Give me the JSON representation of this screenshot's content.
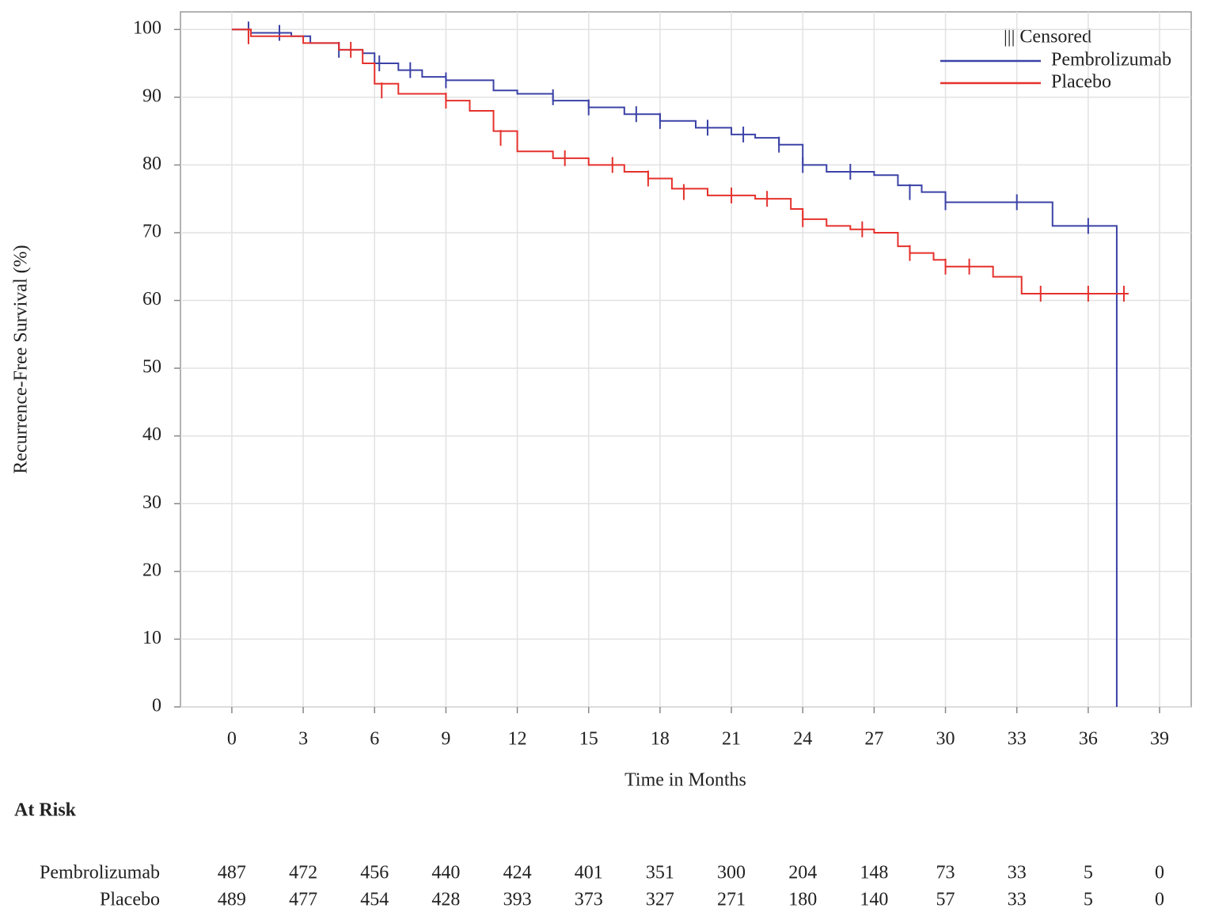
{
  "chart_data": {
    "type": "step",
    "x_label": "Time in Months",
    "y_label": "Recurrence-Free Survival (%)",
    "xlim": [
      -2.16,
      40.33
    ],
    "ylim": [
      0,
      102.6
    ],
    "xticks": [
      0,
      3,
      6,
      9,
      12,
      15,
      18,
      21,
      24,
      27,
      30,
      33,
      36,
      39
    ],
    "yticks": [
      0,
      10,
      20,
      30,
      40,
      50,
      60,
      70,
      80,
      90,
      100
    ],
    "grid": true,
    "legend_position": "upper right",
    "legend_censored": "||| Censored",
    "series": [
      {
        "name": "Pembrolizumab",
        "color": "#3b42a6",
        "x": [
          0,
          0.8,
          2.5,
          3.3,
          4.5,
          5.5,
          6,
          7,
          8,
          9,
          11,
          12,
          13.5,
          15,
          16.5,
          18,
          19.5,
          21,
          22,
          23,
          24,
          25,
          27,
          28,
          29,
          30,
          34.5,
          37.2
        ],
        "values": [
          100,
          99.5,
          99,
          98,
          97,
          96.5,
          95,
          94,
          93,
          92.5,
          91,
          90.5,
          89.5,
          88.5,
          87.5,
          86.5,
          85.5,
          84.5,
          84,
          83,
          80,
          79,
          78.5,
          77,
          76,
          74.5,
          71,
          0
        ],
        "censored_x": [
          0.7,
          2,
          4.5,
          6.2,
          7.5,
          9,
          13.5,
          15,
          17,
          18,
          20,
          21.5,
          23,
          24,
          26,
          28.5,
          30,
          33,
          36
        ],
        "censored_values": [
          100,
          99.5,
          97,
          95,
          94,
          92.5,
          90,
          88.5,
          87.5,
          86.5,
          85.5,
          84.5,
          83,
          80,
          79,
          76,
          74.5,
          74.5,
          71
        ]
      },
      {
        "name": "Placebo",
        "color": "#e5312c",
        "x": [
          0,
          0.8,
          3,
          4.5,
          5.5,
          6,
          7,
          9,
          10,
          11,
          12,
          13.5,
          15,
          16.5,
          17.5,
          18.5,
          20,
          22,
          23.5,
          24,
          25,
          26,
          27,
          28,
          28.5,
          29.5,
          30,
          32,
          33.2,
          37.7
        ],
        "values": [
          100,
          99,
          98,
          97,
          95,
          92,
          90.5,
          89.5,
          88,
          85,
          82,
          81,
          80,
          79,
          78,
          76.5,
          75.5,
          75,
          73.5,
          72,
          71,
          70.5,
          70,
          68,
          67,
          66,
          65,
          63.5,
          61,
          61
        ],
        "censored_x": [
          0.7,
          5,
          6.3,
          9,
          11.3,
          14,
          16,
          17.5,
          19,
          21,
          22.5,
          24,
          26.5,
          28.5,
          30,
          31,
          34,
          36,
          37.5
        ],
        "censored_values": [
          99,
          97,
          91,
          89.5,
          84,
          81,
          80,
          78,
          76,
          75.5,
          75,
          72,
          70.5,
          67,
          65,
          65,
          61,
          61,
          61
        ]
      }
    ],
    "at_risk": {
      "title": "At Risk",
      "rows": [
        {
          "name": "Pembrolizumab",
          "values": [
            487,
            472,
            456,
            440,
            424,
            401,
            351,
            300,
            204,
            148,
            73,
            33,
            5,
            0
          ]
        },
        {
          "name": "Placebo",
          "values": [
            489,
            477,
            454,
            428,
            393,
            373,
            327,
            271,
            180,
            140,
            57,
            33,
            5,
            0
          ]
        }
      ]
    }
  }
}
